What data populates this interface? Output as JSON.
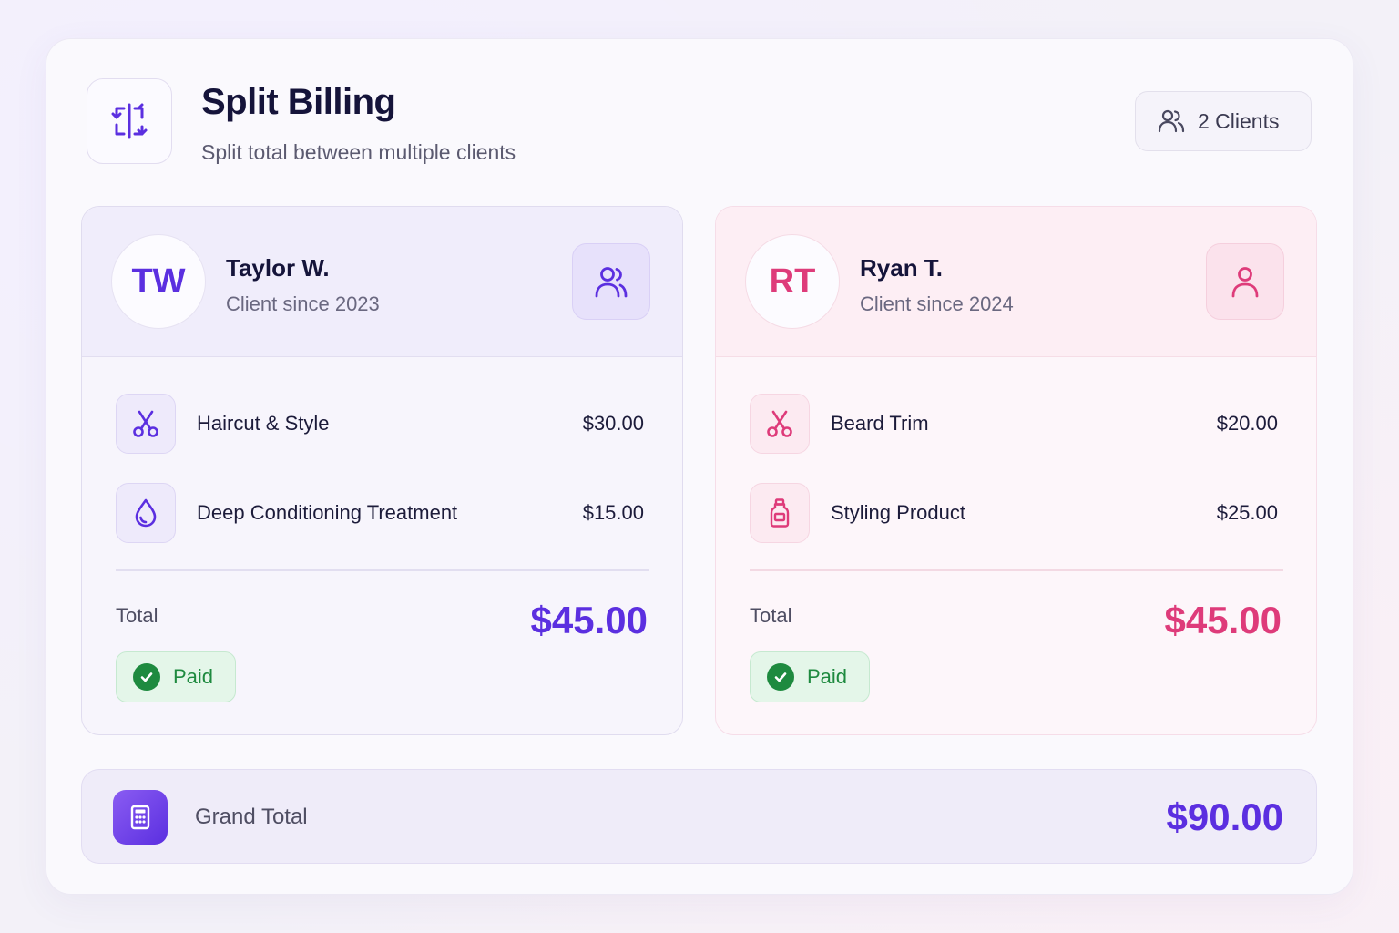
{
  "header": {
    "title": "Split Billing",
    "subtitle": "Split total between multiple clients",
    "icon": "split-arrows-icon",
    "clients_chip": "2 Clients"
  },
  "clients": [
    {
      "initials": "TW",
      "name": "Taylor W.",
      "since": "Client since 2023",
      "accent": "#5b2fe0",
      "items": [
        {
          "icon": "scissors-icon",
          "name": "Haircut & Style",
          "price": "$30.00"
        },
        {
          "icon": "droplet-icon",
          "name": "Deep Conditioning Treatment",
          "price": "$15.00"
        }
      ],
      "total_label": "Total",
      "total": "$45.00",
      "status": "Paid"
    },
    {
      "initials": "RT",
      "name": "Ryan T.",
      "since": "Client since 2024",
      "accent": "#de3b7a",
      "items": [
        {
          "icon": "scissors-icon",
          "name": "Beard Trim",
          "price": "$20.00"
        },
        {
          "icon": "bottle-icon",
          "name": "Styling Product",
          "price": "$25.00"
        }
      ],
      "total_label": "Total",
      "total": "$45.00",
      "status": "Paid"
    }
  ],
  "grand_total": {
    "label": "Grand Total",
    "value": "$90.00",
    "icon": "calculator-icon"
  },
  "colors": {
    "violet_accent": "#5b2fe0",
    "pink_accent": "#de3b7a",
    "paid_green": "#1e8a3f"
  }
}
